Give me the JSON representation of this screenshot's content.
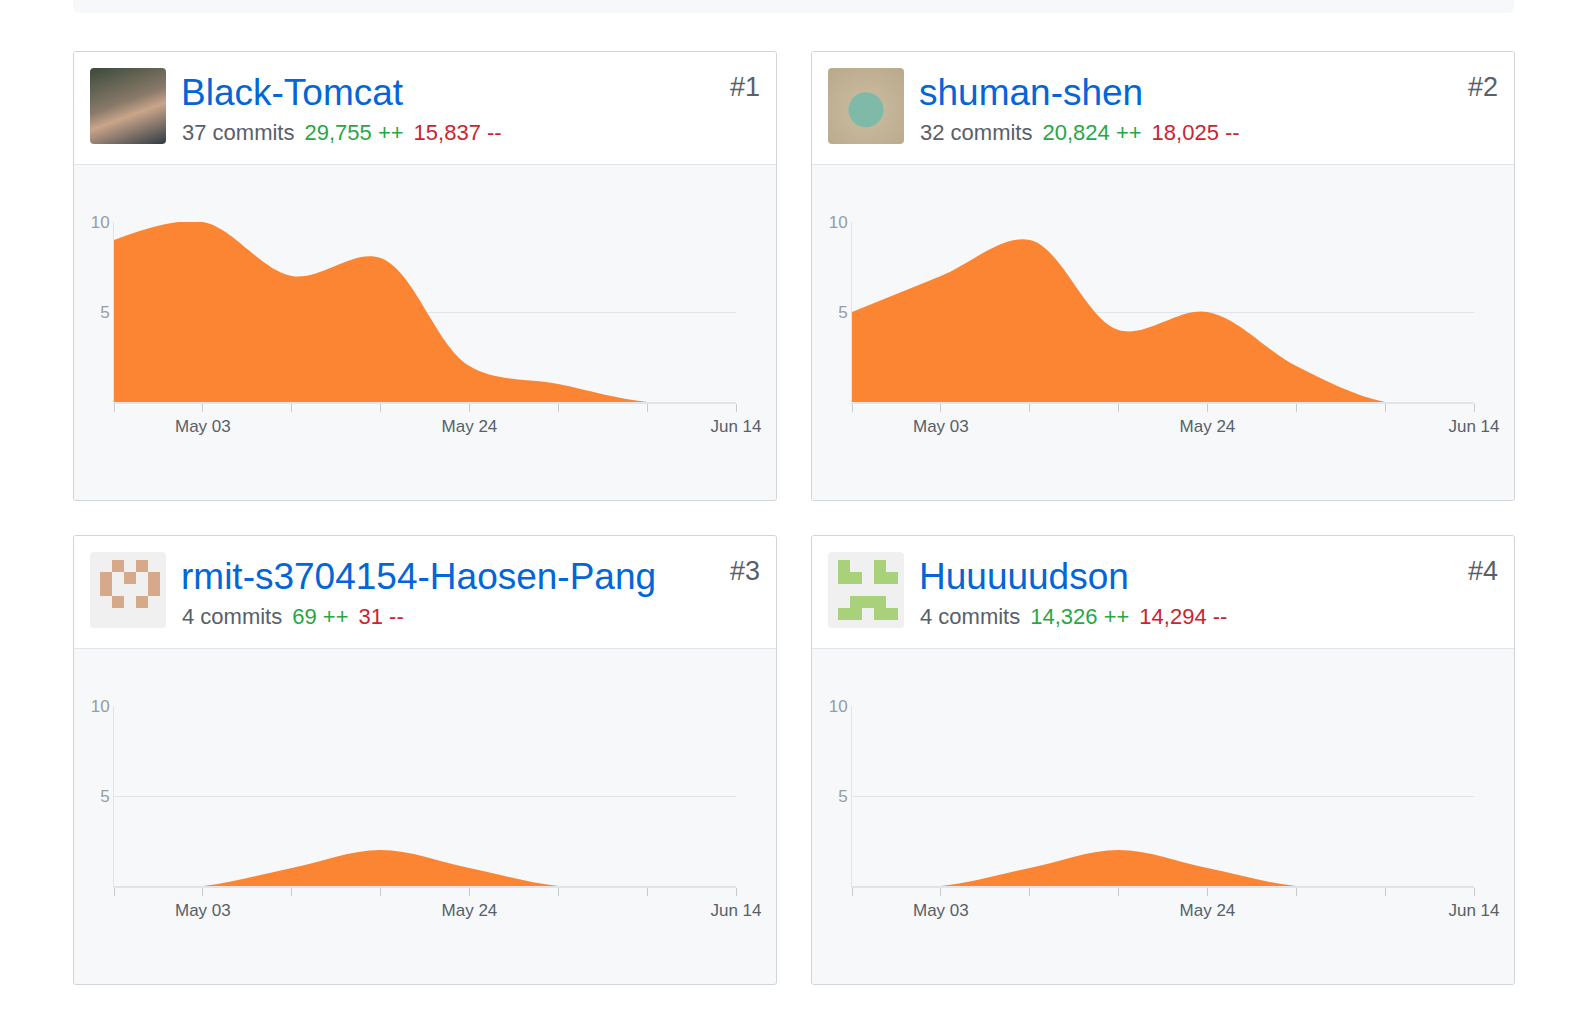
{
  "chart_data": [
    {
      "type": "area",
      "title": "Black-Tomcat",
      "rank": "#1",
      "commits": "37 commits",
      "additions": "29,755 ++",
      "deletions": "15,837 --",
      "categories": [
        null,
        "May 03",
        null,
        null,
        "May 24",
        null,
        null,
        "Jun 14"
      ],
      "values": [
        9,
        10,
        7,
        8,
        2,
        1,
        0,
        0
      ],
      "color": "#fb8532",
      "ylim": [
        0,
        10
      ],
      "yticks": [
        5,
        10
      ],
      "grid": true
    },
    {
      "type": "area",
      "title": "shuman-shen",
      "rank": "#2",
      "commits": "32 commits",
      "additions": "20,824 ++",
      "deletions": "18,025 --",
      "categories": [
        null,
        "May 03",
        null,
        null,
        "May 24",
        null,
        null,
        "Jun 14"
      ],
      "values": [
        5,
        7,
        9,
        4,
        5,
        2,
        0,
        0
      ],
      "color": "#fb8532",
      "ylim": [
        0,
        10
      ],
      "yticks": [
        5,
        10
      ],
      "grid": true
    },
    {
      "type": "area",
      "title": "rmit-s3704154-Haosen-Pang",
      "rank": "#3",
      "commits": "4 commits",
      "additions": "69 ++",
      "deletions": "31 --",
      "categories": [
        null,
        "May 03",
        null,
        null,
        "May 24",
        null,
        null,
        "Jun 14"
      ],
      "values": [
        0,
        0,
        1,
        2,
        1,
        0,
        0,
        0
      ],
      "color": "#fb8532",
      "ylim": [
        0,
        10
      ],
      "yticks": [
        5,
        10
      ],
      "grid": true
    },
    {
      "type": "area",
      "title": "Huuuuudson",
      "rank": "#4",
      "commits": "4 commits",
      "additions": "14,326 ++",
      "deletions": "14,294 --",
      "categories": [
        null,
        "May 03",
        null,
        null,
        "May 24",
        null,
        null,
        "Jun 14"
      ],
      "values": [
        0,
        0,
        1,
        2,
        1,
        0,
        0,
        0
      ],
      "color": "#fb8532",
      "ylim": [
        0,
        10
      ],
      "yticks": [
        5,
        10
      ],
      "grid": true
    }
  ]
}
